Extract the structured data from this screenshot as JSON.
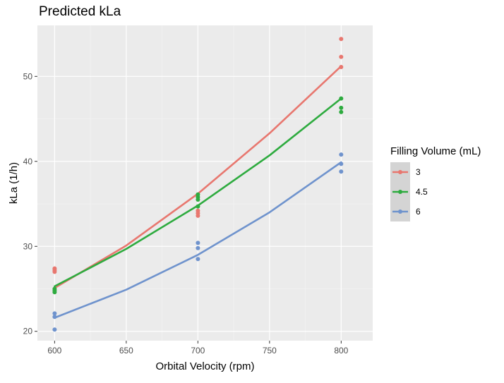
{
  "chart_data": {
    "type": "scatter",
    "title": "Predicted kLa",
    "xlabel": "Orbital Velocity (rpm)",
    "ylabel": "kLa (1/h)",
    "xlim": [
      588,
      822
    ],
    "ylim": [
      18.9,
      56
    ],
    "x_ticks": [
      600,
      650,
      700,
      750,
      800
    ],
    "y_ticks": [
      20,
      30,
      40,
      50
    ],
    "grid": true,
    "legend": {
      "title": "Filling Volume (mL)",
      "position": "right"
    },
    "series": [
      {
        "name": "3",
        "color": "#e8776f",
        "points": [
          [
            600,
            27.4
          ],
          [
            600,
            27.2
          ],
          [
            600,
            27.0
          ],
          [
            700,
            34.2
          ],
          [
            700,
            33.9
          ],
          [
            700,
            33.6
          ],
          [
            800,
            54.4
          ],
          [
            800,
            52.3
          ],
          [
            800,
            51.1
          ]
        ],
        "fit": [
          [
            600,
            25.1
          ],
          [
            650,
            30.1
          ],
          [
            700,
            36.2
          ],
          [
            750,
            43.3
          ],
          [
            800,
            51.2
          ]
        ]
      },
      {
        "name": "4.5",
        "color": "#2eab3f",
        "points": [
          [
            600,
            25.0
          ],
          [
            600,
            24.8
          ],
          [
            600,
            24.6
          ],
          [
            700,
            36.1
          ],
          [
            700,
            35.8
          ],
          [
            700,
            35.5
          ],
          [
            700,
            34.7
          ],
          [
            800,
            47.4
          ],
          [
            800,
            46.3
          ],
          [
            800,
            45.8
          ]
        ],
        "fit": [
          [
            600,
            25.3
          ],
          [
            650,
            29.7
          ],
          [
            700,
            34.8
          ],
          [
            750,
            40.7
          ],
          [
            800,
            47.4
          ]
        ]
      },
      {
        "name": "6",
        "color": "#6f93cd",
        "points": [
          [
            600,
            22.1
          ],
          [
            600,
            21.7
          ],
          [
            600,
            20.2
          ],
          [
            700,
            30.4
          ],
          [
            700,
            29.8
          ],
          [
            700,
            28.5
          ],
          [
            800,
            40.8
          ],
          [
            800,
            39.7
          ],
          [
            800,
            38.8
          ]
        ],
        "fit": [
          [
            600,
            21.6
          ],
          [
            650,
            24.9
          ],
          [
            700,
            29.0
          ],
          [
            750,
            34.0
          ],
          [
            800,
            39.9
          ]
        ]
      }
    ]
  }
}
